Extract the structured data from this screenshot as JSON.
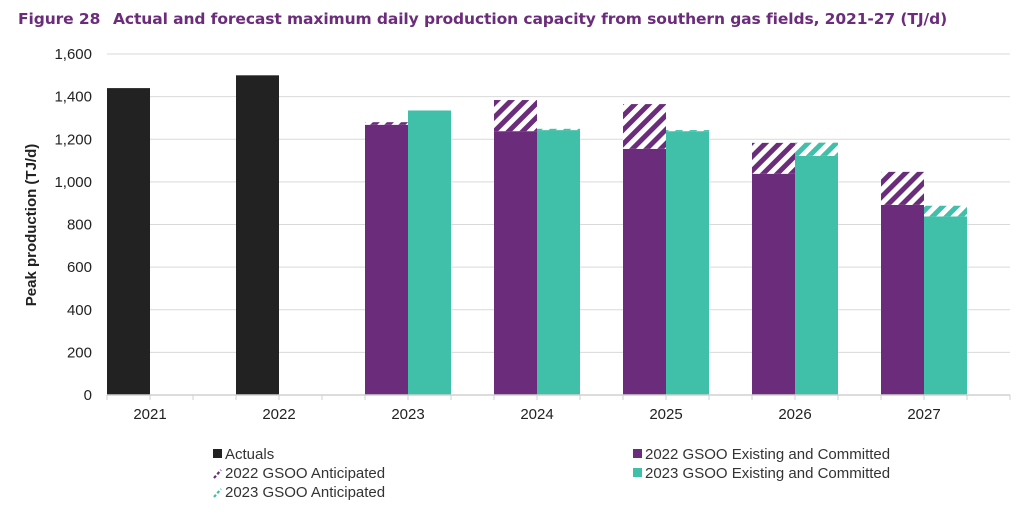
{
  "figure": {
    "number_label": "Figure 28",
    "title": "Actual and forecast maximum daily production capacity from southern gas fields, 2021-27 (TJ/d)"
  },
  "colors": {
    "title": "#6b2d7b",
    "actuals": "#222222",
    "gsoo_2022": "#6b2d7b",
    "gsoo_2023": "#41c0a9",
    "grid": "#d9d9d9",
    "axis": "#d0d0d0"
  },
  "chart_data": {
    "type": "bar",
    "title": "Actual and forecast maximum daily production capacity from southern gas fields, 2021-27 (TJ/d)",
    "xlabel": "",
    "ylabel": "Peak production (TJ/d)",
    "ylim": [
      0,
      1600
    ],
    "yticks": [
      0,
      200,
      400,
      600,
      800,
      1000,
      1200,
      1400,
      1600
    ],
    "ytick_labels": [
      "0",
      "200",
      "400",
      "600",
      "800",
      "1,000",
      "1,200",
      "1,400",
      "1,600"
    ],
    "grid": true,
    "categories": [
      "2021",
      "2022",
      "2023",
      "2024",
      "2025",
      "2026",
      "2027"
    ],
    "series": [
      {
        "name": "Actuals",
        "key": "actuals",
        "values": [
          1440,
          1500,
          null,
          null,
          null,
          null,
          null
        ]
      },
      {
        "name": "2022 GSOO Existing and Committed",
        "key": "gsoo_2022",
        "values": [
          null,
          null,
          1268,
          1238,
          1155,
          1038,
          892
        ]
      },
      {
        "name": "2022 GSOO Anticipated",
        "key": "gsoo_2022_anticipated",
        "stack_on": "gsoo_2022",
        "hatched": true,
        "values": [
          null,
          null,
          12,
          146,
          210,
          145,
          155
        ]
      },
      {
        "name": "2023 GSOO Existing and Committed",
        "key": "gsoo_2023",
        "values": [
          null,
          null,
          1335,
          1243,
          1238,
          1122,
          838
        ]
      },
      {
        "name": "2023 GSOO Anticipated",
        "key": "gsoo_2023_anticipated",
        "stack_on": "gsoo_2023",
        "hatched": true,
        "values": [
          null,
          null,
          0,
          6,
          5,
          62,
          50
        ]
      }
    ],
    "legend": {
      "placement": "bottom",
      "entries": [
        {
          "label": "Actuals",
          "key": "actuals"
        },
        {
          "label": "2022 GSOO Existing and Committed",
          "key": "gsoo_2022"
        },
        {
          "label": "2022 GSOO Anticipated",
          "key": "gsoo_2022_anticipated"
        },
        {
          "label": "2023 GSOO Existing and Committed",
          "key": "gsoo_2023"
        },
        {
          "label": "2023 GSOO Anticipated",
          "key": "gsoo_2023_anticipated"
        }
      ]
    }
  }
}
